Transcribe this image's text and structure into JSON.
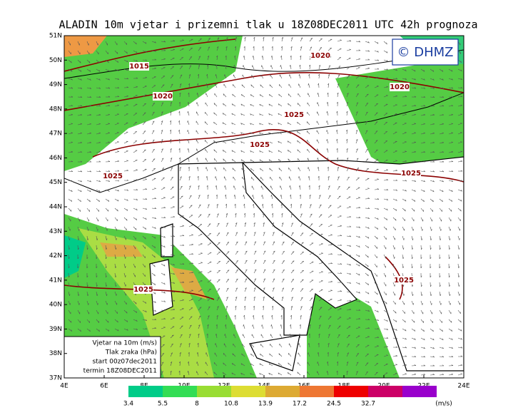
{
  "title": "ALADIN 10m vjetar i prizemni tlak u 18Z08DEC2011 UTC 42h prognoza",
  "logo": "© DHMZ",
  "map": {
    "lat_labels": [
      "51N",
      "50N",
      "49N",
      "48N",
      "47N",
      "46N",
      "45N",
      "44N",
      "43N",
      "42N",
      "41N",
      "40N",
      "39N",
      "38N",
      "37N"
    ],
    "lon_labels": [
      "4E",
      "6E",
      "8E",
      "10E",
      "12E",
      "14E",
      "16E",
      "18E",
      "20E",
      "22E",
      "24E"
    ],
    "isobar_labels": [
      "1015",
      "1020",
      "1020",
      "1020",
      "1025",
      "1025",
      "1025",
      "1025",
      "1025",
      "1025"
    ]
  },
  "info_box": [
    "Vjetar na 10m (m/s)",
    "Tlak zraka (hPa)",
    "start 00z07dec2011",
    "termin 18Z08DEC2011"
  ],
  "colorbar": {
    "labels": [
      "3.4",
      "5.5",
      "8",
      "10.8",
      "13.9",
      "17.2",
      "24.5",
      "32.7"
    ],
    "colors": [
      "#00cc88",
      "#33dd55",
      "#99dd33",
      "#dddd33",
      "#ddaa33",
      "#ee7733",
      "#ee0000",
      "#cc0066",
      "#9900cc"
    ],
    "unit": "(m/s)"
  }
}
